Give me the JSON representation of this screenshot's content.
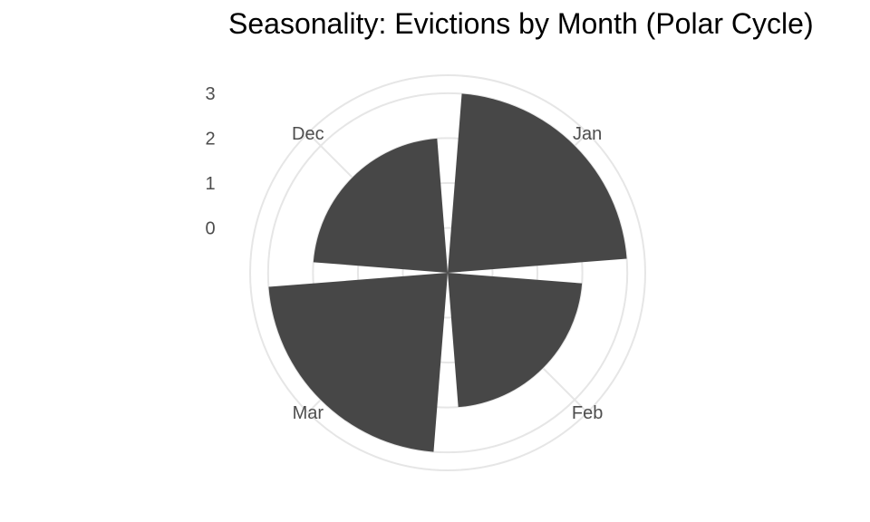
{
  "chart_data": {
    "type": "bar",
    "coord": "polar",
    "title": "Seasonality: Evictions by Month (Polar Cycle)",
    "categories": [
      "Jan",
      "Feb",
      "Mar",
      "Dec"
    ],
    "values": [
      3,
      2,
      3,
      2
    ],
    "r_ticks": [
      0,
      1,
      2,
      3
    ],
    "rlim": [
      -1,
      3.4
    ],
    "grid": true,
    "legend": "none"
  },
  "colors": {
    "bar": "#474747",
    "grid": "#e6e6e6",
    "text": "#4d4d4d"
  }
}
